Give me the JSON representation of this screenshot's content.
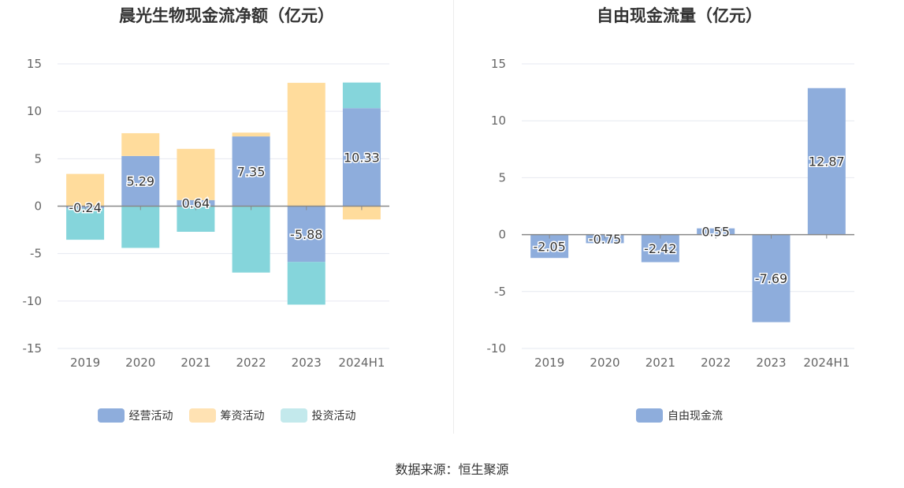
{
  "source_text": "数据来源：恒生聚源",
  "chart_data": [
    {
      "type": "bar",
      "title": "晨光生物现金流净额（亿元）",
      "categories": [
        "2019",
        "2020",
        "2021",
        "2022",
        "2023",
        "2024H1"
      ],
      "ylim": [
        -15,
        15
      ],
      "yticks": [
        15,
        10,
        5,
        0,
        -5,
        -10,
        -15
      ],
      "ytick_labels": [
        "15",
        "10",
        "5",
        "0",
        "-5",
        "-10",
        "-15"
      ],
      "stacked": true,
      "grid": true,
      "legend_position": "bottom",
      "series": [
        {
          "name": "经营活动",
          "color": "#8eaddc",
          "values": [
            -0.24,
            5.29,
            0.64,
            7.35,
            -5.88,
            10.33
          ],
          "labels": [
            "-0.24",
            "5.29",
            "0.64",
            "7.35",
            "-5.88",
            "10.33"
          ]
        },
        {
          "name": "筹资活动",
          "color": "#ffdc9c",
          "values": [
            3.4,
            2.4,
            5.4,
            0.4,
            13.0,
            -1.4
          ]
        },
        {
          "name": "投资活动",
          "color": "#85d5db",
          "values": [
            -3.3,
            -4.4,
            -2.7,
            -7.0,
            -4.5,
            2.7
          ]
        }
      ],
      "legend_colors": [
        "#8eaddc",
        "#ffe2b3",
        "#c3e9ec"
      ]
    },
    {
      "type": "bar",
      "title": "自由现金流量（亿元）",
      "categories": [
        "2019",
        "2020",
        "2021",
        "2022",
        "2023",
        "2024H1"
      ],
      "ylim": [
        -10,
        15
      ],
      "yticks": [
        15,
        10,
        5,
        0,
        -5,
        -10
      ],
      "ytick_labels": [
        "15",
        "10",
        "5",
        "0",
        "-5",
        "-10"
      ],
      "grid": true,
      "legend_position": "bottom",
      "series": [
        {
          "name": "自由现金流",
          "color": "#8eaddc",
          "values": [
            -2.05,
            -0.75,
            -2.42,
            0.55,
            -7.69,
            12.87
          ],
          "labels": [
            "-2.05",
            "-0.75",
            "-2.42",
            "0.55",
            "-7.69",
            "12.87"
          ]
        }
      ],
      "legend_colors": [
        "#8eaddc"
      ]
    }
  ]
}
